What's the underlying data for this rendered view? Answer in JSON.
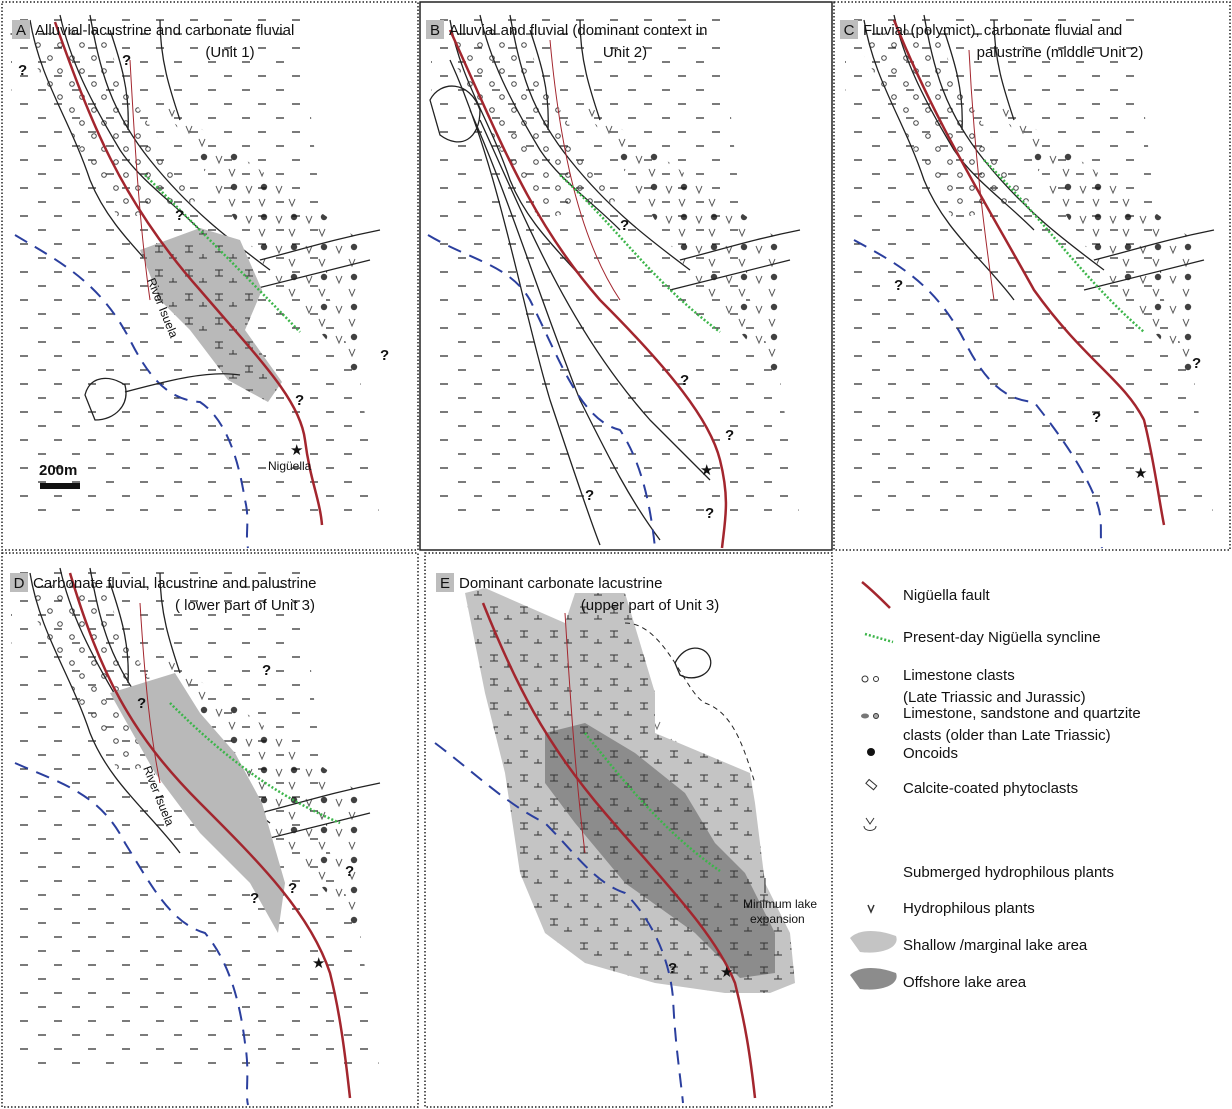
{
  "panels": [
    {
      "letter": "A",
      "title_lines": [
        "Alluvial-lacustrine and carbonate fluvial",
        "(Unit 1)"
      ]
    },
    {
      "letter": "B",
      "title_lines": [
        "Alluvial and fluvial (dominant context in",
        "Unit 2)"
      ]
    },
    {
      "letter": "C",
      "title_lines": [
        "Fluvial (polymict), carbonate fluvial and",
        "palustrine (middle Unit 2)"
      ]
    },
    {
      "letter": "D",
      "title_lines": [
        "Carbonate fluvial, lacustrine and palustrine",
        "( lower part of Unit 3)"
      ]
    },
    {
      "letter": "E",
      "title_lines": [
        "Dominant carbonate lacustrine",
        "(upper part of Unit 3)"
      ]
    }
  ],
  "map_labels": {
    "river": "River Isuela",
    "town": "Nigüella",
    "scale": "200m",
    "unknown": "?",
    "lake_note_lines": [
      "Minimum lake",
      "expansion"
    ]
  },
  "legend": [
    {
      "lines": [
        "Nigüella fault"
      ]
    },
    {
      "lines": [
        "Present-day Nigüella syncline"
      ]
    },
    {
      "lines": [
        "Limestone clasts",
        "(Late Triassic and Jurassic)"
      ]
    },
    {
      "lines": [
        "Limestone, sandstone and quartzite",
        "clasts (older than Late Triassic)"
      ]
    },
    {
      "lines": [
        "Oncoids"
      ]
    },
    {
      "lines": [
        "Calcite-coated phytoclasts"
      ]
    },
    {
      "lines": [
        "Submerged hydrophilous plants"
      ]
    },
    {
      "lines": [
        "Hydrophilous plants"
      ]
    },
    {
      "lines": [
        "Shallow /marginal lake area"
      ]
    },
    {
      "lines": [
        "Offshore lake area"
      ]
    }
  ]
}
